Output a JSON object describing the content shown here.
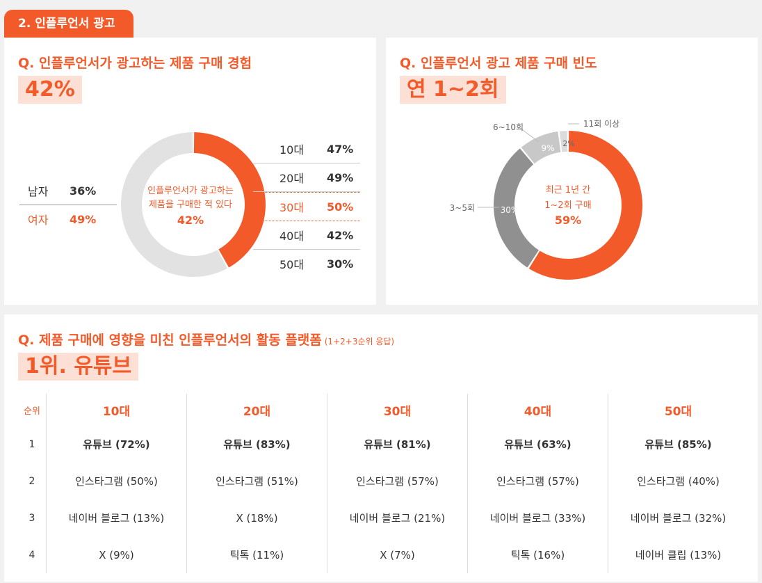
{
  "section_tab": "2. 인플루언서 광고",
  "left_card": {
    "question": "Q. 인플루언서가 광고하는 제품 구매 경험",
    "highlight": "42%",
    "center_line1": "인플루언서가 광고하는",
    "center_line2": "제품을 구매한 적 있다",
    "center_value": "42%",
    "gender": [
      {
        "label": "남자",
        "value": "36%"
      },
      {
        "label": "여자",
        "value": "49%"
      }
    ],
    "ages": [
      {
        "label": "10대",
        "value": "47%"
      },
      {
        "label": "20대",
        "value": "49%"
      },
      {
        "label": "30대",
        "value": "50%"
      },
      {
        "label": "40대",
        "value": "42%"
      },
      {
        "label": "50대",
        "value": "30%"
      }
    ]
  },
  "right_card": {
    "question": "Q. 인플루언서 광고 제품 구매 빈도",
    "highlight": "연 1~2회",
    "center_line1": "최근 1년 간",
    "center_line2": "1~2회 구매",
    "center_value": "59%",
    "slice_labels": {
      "s3_5": "3~5회",
      "s6_10": "6~10회",
      "s11": "11회 이상",
      "p30": "30%",
      "p9": "9%",
      "p2": "2%"
    }
  },
  "bottom_card": {
    "question": "Q. 제품 구매에 영향을 미친 인플루언서의 활동 플랫폼",
    "note": "(1+2+3순위 응답)",
    "highlight": "1위. 유튜브",
    "rank_header": "순위",
    "columns": [
      "10대",
      "20대",
      "30대",
      "40대",
      "50대"
    ],
    "rows": [
      {
        "rank": "1",
        "cells": [
          "유튜브 (72%)",
          "유튜브 (83%)",
          "유튜브 (81%)",
          "유튜브 (63%)",
          "유튜브 (85%)"
        ]
      },
      {
        "rank": "2",
        "cells": [
          "인스타그램 (50%)",
          "인스타그램 (51%)",
          "인스타그램 (57%)",
          "인스타그램 (57%)",
          "인스타그램 (40%)"
        ]
      },
      {
        "rank": "3",
        "cells": [
          "네이버 블로그 (13%)",
          "X (18%)",
          "네이버 블로그 (21%)",
          "네이버 블로그 (33%)",
          "네이버 블로그 (32%)"
        ]
      },
      {
        "rank": "4",
        "cells": [
          "X (9%)",
          "틱톡 (11%)",
          "X (7%)",
          "틱톡 (16%)",
          "네이버 클립 (13%)"
        ]
      }
    ]
  },
  "chart_data": [
    {
      "type": "pie",
      "labels": [
        "",
        ""
      ],
      "values": [
        42,
        58
      ],
      "colors": [
        "#f25a2a",
        "#e2e2e2"
      ]
    },
    {
      "type": "pie",
      "labels": [
        "",
        "3~5회",
        "6~10회",
        "11회 이상"
      ],
      "values": [
        59,
        30,
        9,
        2
      ],
      "colors": [
        "#f25a2a",
        "#909090",
        "#c8c8c8",
        "#dcdcdc"
      ]
    }
  ]
}
